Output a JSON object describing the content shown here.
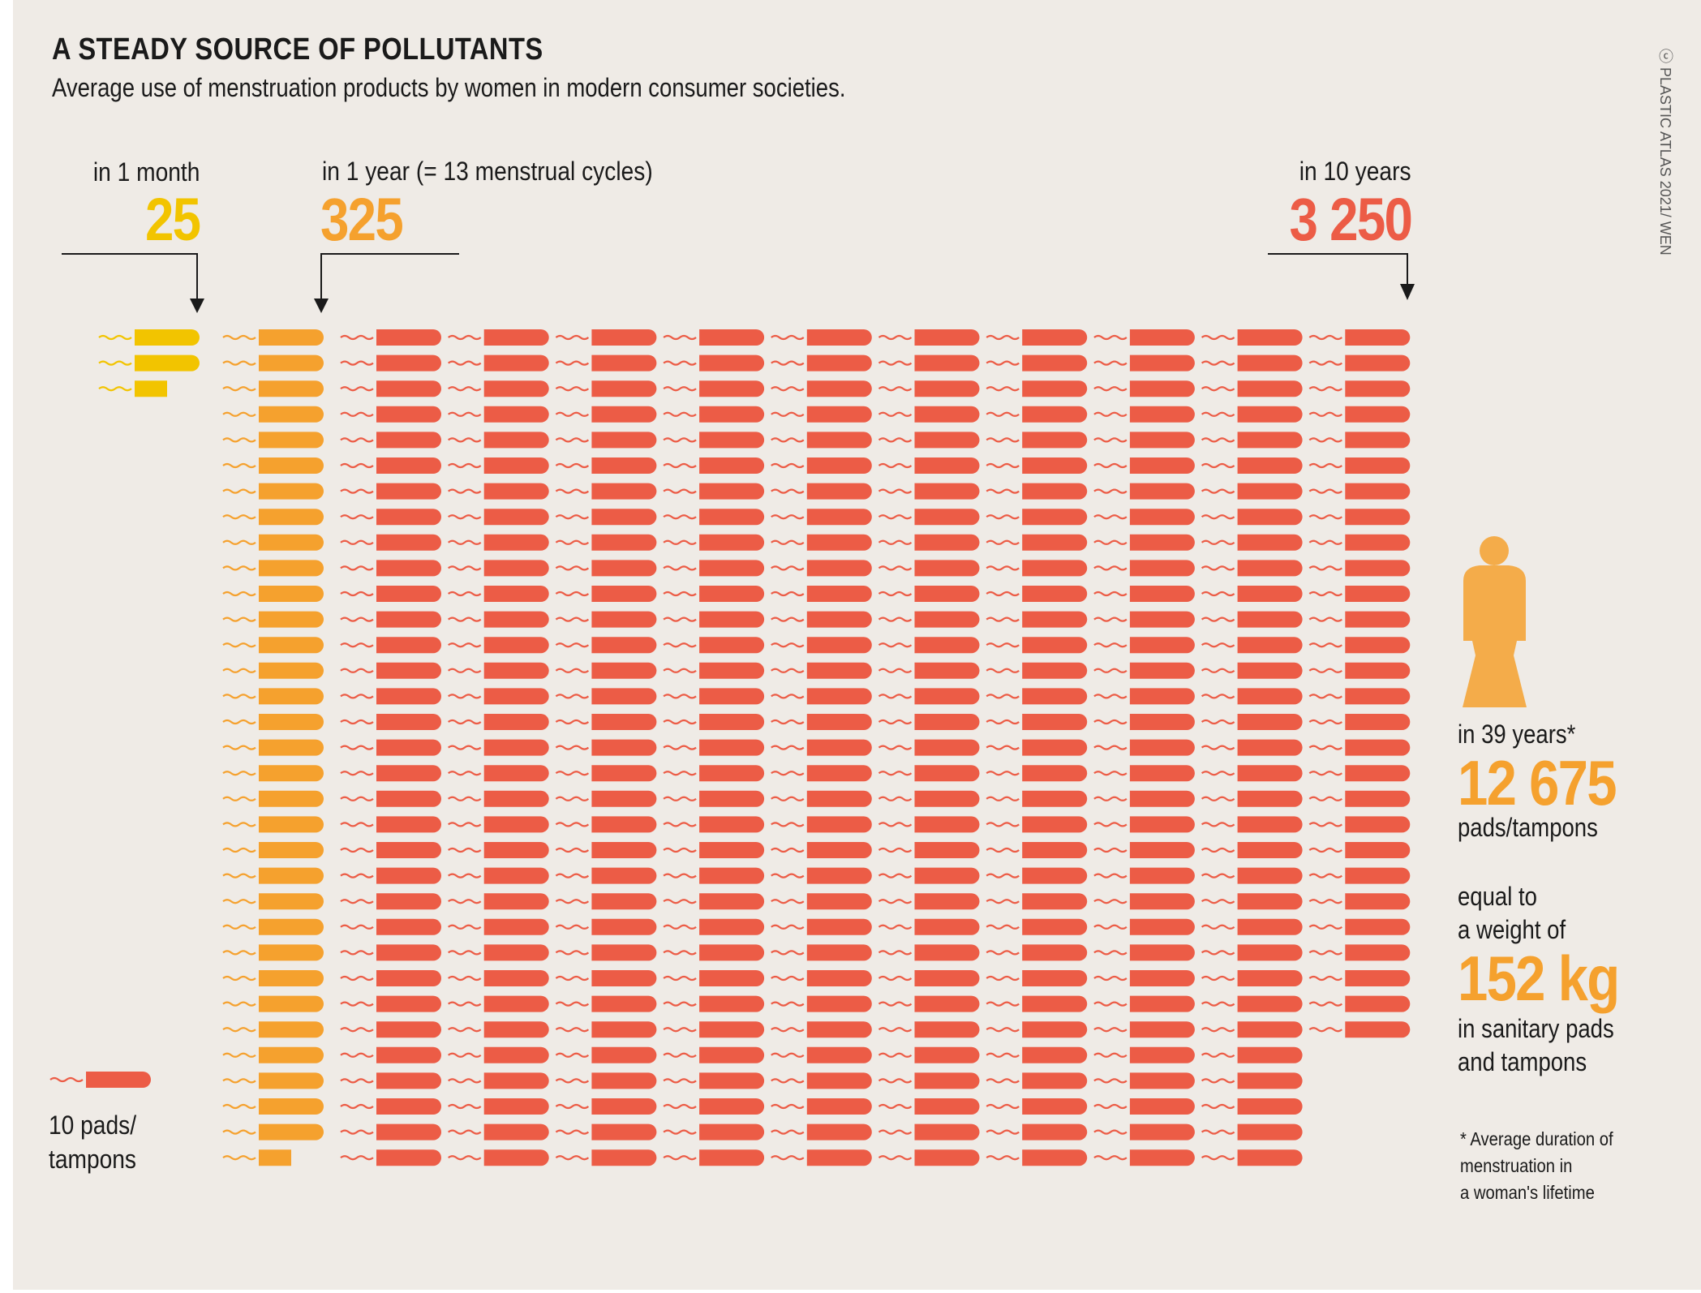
{
  "header": {
    "title": "A STEADY SOURCE OF POLLUTANTS",
    "subtitle": "Average use of menstruation products by women in modern consumer societies.",
    "copyright": "ⓒ PLASTIC ATLAS 2021/ WEN"
  },
  "colors": {
    "month": "#f2c400",
    "year": "#f5a12e",
    "decade": "#ec5c46",
    "figure": "#f4ac4a",
    "ink": "#1a1a1a",
    "background": "#efebe6"
  },
  "chart_data": {
    "type": "pictogram",
    "unit_value": 10,
    "legend": {
      "label_line1": "10 pads/",
      "label_line2": "tampons"
    },
    "groups": [
      {
        "label": "in 1 month",
        "value_text": "25",
        "value": 25
      },
      {
        "label": "in 1 year (= 13 menstrual cycles)",
        "value_text": "325",
        "value": 325
      },
      {
        "label": "in 10 years",
        "value_text": "3 250",
        "value": 3250
      }
    ],
    "lifetime": {
      "label": "in 39 years*",
      "value_text": "12 675",
      "value": 12675,
      "unit": "pads/tampons",
      "weight_lines": [
        "equal to",
        "a weight of"
      ],
      "weight_text": "152 kg",
      "weight_value": 152,
      "weight_unit": "kg",
      "weight_suffix_lines": [
        "in sanitary pads",
        "and tampons"
      ],
      "footnote_lines": [
        "* Average duration of",
        "menstruation in",
        "a woman's lifetime"
      ]
    }
  }
}
